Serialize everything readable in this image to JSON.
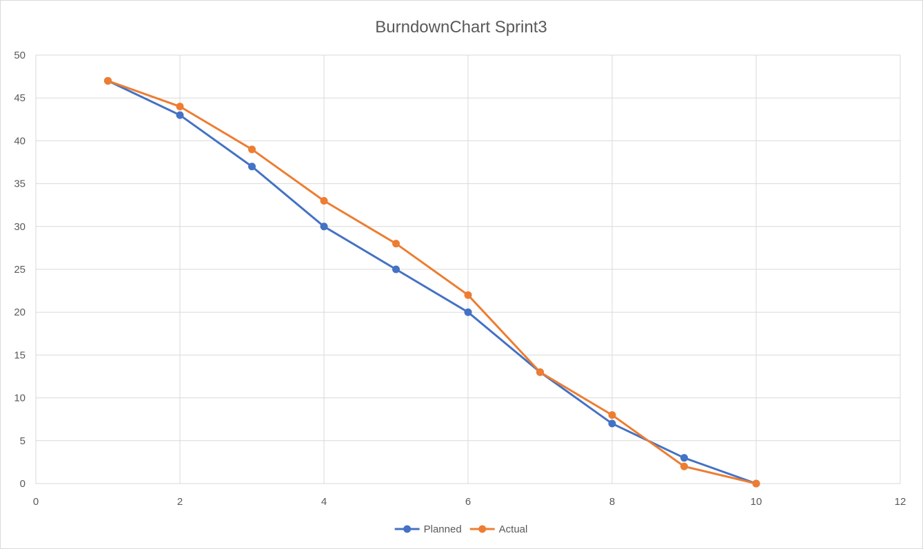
{
  "chart_data": {
    "type": "line",
    "title": "BurndownChart Sprint3",
    "xlabel": "",
    "ylabel": "",
    "xlim": [
      0,
      12
    ],
    "ylim": [
      0,
      50
    ],
    "x_ticks": [
      0,
      2,
      4,
      6,
      8,
      10,
      12
    ],
    "y_ticks": [
      0,
      5,
      10,
      15,
      20,
      25,
      30,
      35,
      40,
      45,
      50
    ],
    "grid": true,
    "legend_position": "bottom",
    "series": [
      {
        "name": "Planned",
        "color": "#4472C4",
        "x": [
          1,
          2,
          3,
          4,
          5,
          6,
          7,
          8,
          9,
          10
        ],
        "values": [
          47,
          43,
          37,
          30,
          25,
          20,
          13,
          7,
          3,
          0
        ]
      },
      {
        "name": "Actual",
        "color": "#ED7D31",
        "x": [
          1,
          2,
          3,
          4,
          5,
          6,
          7,
          8,
          9,
          10
        ],
        "values": [
          47,
          44,
          39,
          33,
          28,
          22,
          13,
          8,
          2,
          0
        ]
      }
    ]
  }
}
